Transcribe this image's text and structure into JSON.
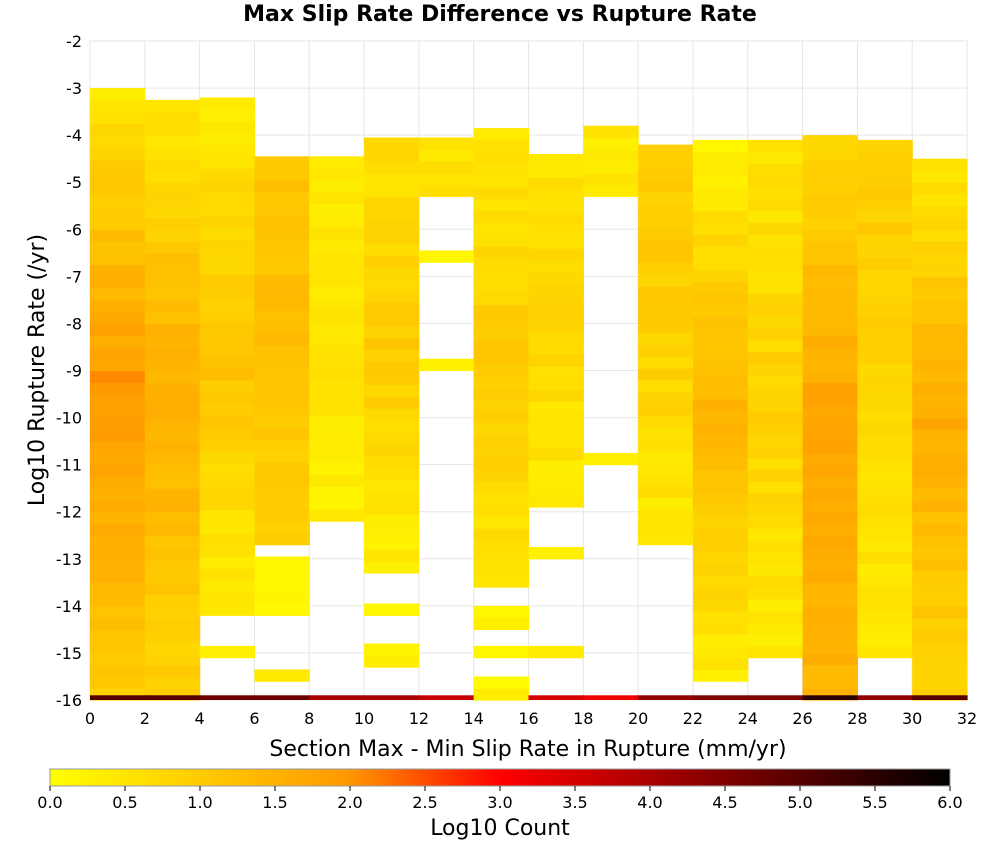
{
  "chart_data": {
    "type": "heatmap",
    "title": "Max Slip Rate Difference vs Rupture Rate",
    "xlabel": "Section Max - Min Slip Rate in Rupture (mm/yr)",
    "ylabel": "Log10 Rupture Rate (/yr)",
    "xlim": [
      0,
      32
    ],
    "ylim": [
      -16,
      -2
    ],
    "x_bin_width": 2,
    "y_bin_height": 0.25,
    "x_ticks": [
      "0",
      "2",
      "4",
      "6",
      "8",
      "10",
      "12",
      "14",
      "16",
      "18",
      "20",
      "22",
      "24",
      "26",
      "28",
      "30",
      "32"
    ],
    "y_ticks": [
      "-2",
      "-3",
      "-4",
      "-5",
      "-6",
      "-7",
      "-8",
      "-9",
      "-10",
      "-11",
      "-12",
      "-13",
      "-14",
      "-15",
      "-16"
    ],
    "grid": true,
    "colorbar": {
      "label": "Log10 Count",
      "range": [
        0,
        6
      ],
      "ticks": [
        "0.0",
        "0.5",
        "1.0",
        "1.5",
        "2.0",
        "2.5",
        "3.0",
        "3.5",
        "4.0",
        "4.5",
        "5.0",
        "5.5",
        "6.0"
      ],
      "colors": [
        "#ffff00",
        "#ff9900",
        "#ff0000",
        "#000000"
      ]
    },
    "columns": [
      {
        "x": 0,
        "segments": [
          {
            "from": -16,
            "to": -3.0,
            "v0": 1.0,
            "vmid": 2.0,
            "v1": 0.5
          }
        ]
      },
      {
        "x": 2,
        "segments": [
          {
            "from": -16,
            "to": -3.3,
            "v0": 0.8,
            "vmid": 1.6,
            "v1": 0.5
          }
        ]
      },
      {
        "x": 4,
        "segments": [
          {
            "from": -14.2,
            "to": -3.3,
            "v0": 0.3,
            "vmid": 1.2,
            "v1": 0.4
          },
          {
            "from": -15.1,
            "to": -14.8,
            "v0": 0.4,
            "vmid": 0.4,
            "v1": 0.4
          }
        ]
      },
      {
        "x": 6,
        "segments": [
          {
            "from": -12.7,
            "to": -4.4,
            "v0": 0.8,
            "vmid": 1.2,
            "v1": 1.2
          },
          {
            "from": -14.2,
            "to": -12.9,
            "v0": 0.2,
            "vmid": 0.3,
            "v1": 0.3
          },
          {
            "from": -15.6,
            "to": -15.3,
            "v0": 0.3,
            "vmid": 0.3,
            "v1": 0.3
          }
        ]
      },
      {
        "x": 8,
        "segments": [
          {
            "from": -12.2,
            "to": -4.4,
            "v0": 0.3,
            "vmid": 0.6,
            "v1": 0.3
          }
        ]
      },
      {
        "x": 10,
        "segments": [
          {
            "from": -13.3,
            "to": -4.1,
            "v0": 0.3,
            "vmid": 1.0,
            "v1": 0.6
          },
          {
            "from": -14.2,
            "to": -13.9,
            "v0": 0.2,
            "vmid": 0.2,
            "v1": 0.2
          },
          {
            "from": -15.3,
            "to": -14.8,
            "v0": 0.4,
            "vmid": 0.4,
            "v1": 0.3
          }
        ]
      },
      {
        "x": 12,
        "segments": [
          {
            "from": -5.3,
            "to": -4.1,
            "v0": 0.5,
            "vmid": 0.6,
            "v1": 0.4
          },
          {
            "from": -6.7,
            "to": -6.4,
            "v0": 0.3,
            "vmid": 0.3,
            "v1": 0.3
          },
          {
            "from": -9.0,
            "to": -8.7,
            "v0": 0.3,
            "vmid": 0.3,
            "v1": 0.3
          }
        ]
      },
      {
        "x": 14,
        "segments": [
          {
            "from": -13.6,
            "to": -3.8,
            "v0": 0.5,
            "vmid": 1.0,
            "v1": 0.4
          },
          {
            "from": -14.5,
            "to": -13.9,
            "v0": 0.2,
            "vmid": 0.2,
            "v1": 0.2
          },
          {
            "from": -15.1,
            "to": -14.8,
            "v0": 0.3,
            "vmid": 0.3,
            "v1": 0.3
          },
          {
            "from": -16,
            "to": -15.6,
            "v0": 0.2,
            "vmid": 0.2,
            "v1": 0.2
          }
        ]
      },
      {
        "x": 16,
        "segments": [
          {
            "from": -11.9,
            "to": -4.4,
            "v0": 0.4,
            "vmid": 0.8,
            "v1": 0.5
          },
          {
            "from": -13.0,
            "to": -12.7,
            "v0": 0.4,
            "vmid": 0.4,
            "v1": 0.4
          },
          {
            "from": -15.1,
            "to": -14.8,
            "v0": 0.3,
            "vmid": 0.3,
            "v1": 0.3
          }
        ]
      },
      {
        "x": 18,
        "segments": [
          {
            "from": -5.3,
            "to": -3.8,
            "v0": 0.4,
            "vmid": 0.4,
            "v1": 0.4
          },
          {
            "from": -11.0,
            "to": -10.7,
            "v0": 0.3,
            "vmid": 0.3,
            "v1": 0.3
          }
        ]
      },
      {
        "x": 20,
        "segments": [
          {
            "from": -12.7,
            "to": -4.1,
            "v0": 0.4,
            "vmid": 0.9,
            "v1": 1.0
          }
        ]
      },
      {
        "x": 22,
        "segments": [
          {
            "from": -15.6,
            "to": -4.1,
            "v0": 0.4,
            "vmid": 1.4,
            "v1": 0.3
          }
        ]
      },
      {
        "x": 24,
        "segments": [
          {
            "from": -15.1,
            "to": -4.1,
            "v0": 0.4,
            "vmid": 0.9,
            "v1": 0.5
          }
        ]
      },
      {
        "x": 26,
        "segments": [
          {
            "from": -16,
            "to": -4.1,
            "v0": 1.4,
            "vmid": 1.8,
            "v1": 0.7
          }
        ]
      },
      {
        "x": 28,
        "segments": [
          {
            "from": -15.1,
            "to": -4.1,
            "v0": 0.4,
            "vmid": 0.8,
            "v1": 1.0
          }
        ]
      },
      {
        "x": 30,
        "segments": [
          {
            "from": -16,
            "to": -4.4,
            "v0": 0.8,
            "vmid": 1.6,
            "v1": 0.5
          }
        ]
      }
    ],
    "bottom_row": {
      "y": -16,
      "values": [
        5.0,
        5.0,
        4.7,
        4.7,
        4.0,
        4.0,
        3.7,
        0.3,
        3.5,
        3.2,
        4.3,
        4.5,
        4.5,
        5.5,
        4.3,
        5.0
      ]
    }
  }
}
